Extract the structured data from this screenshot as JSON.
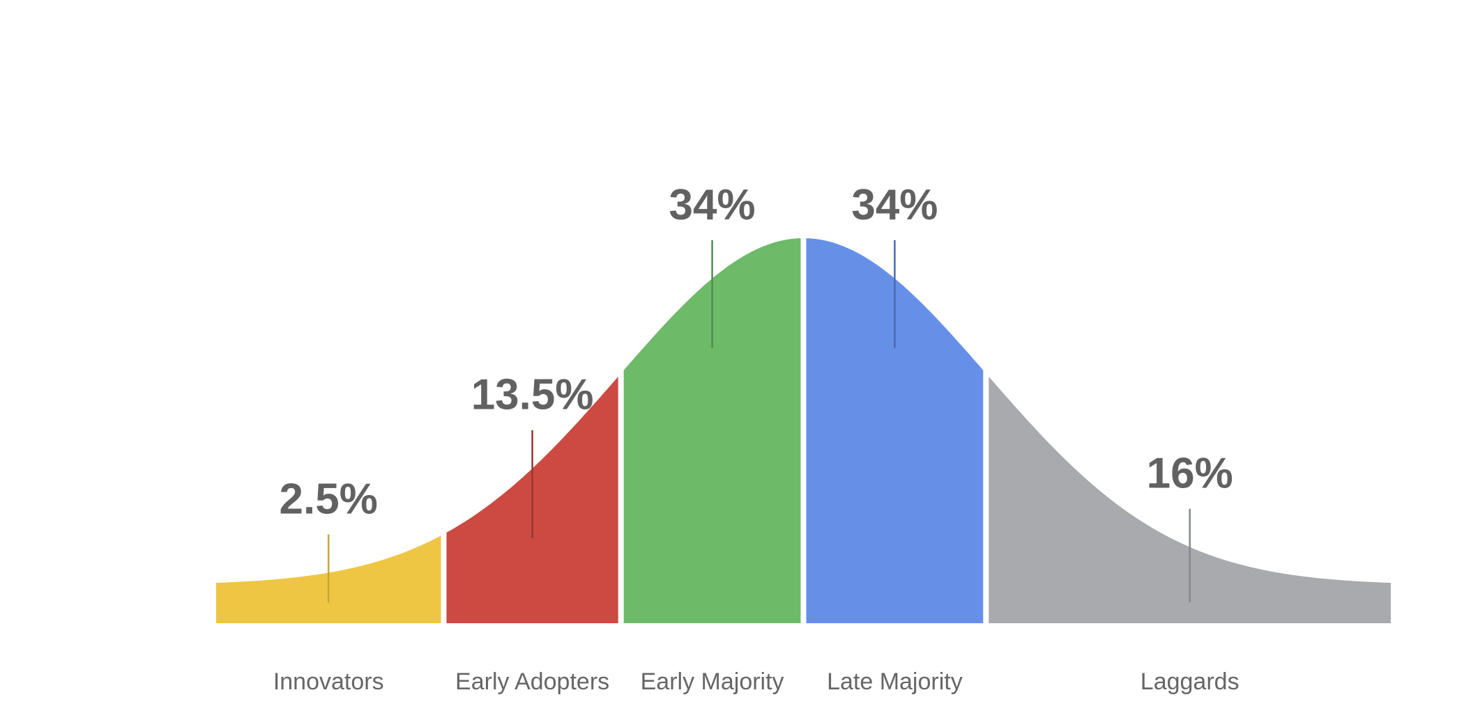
{
  "chart_data": {
    "type": "area",
    "title": "",
    "xlabel": "",
    "ylabel": "",
    "grid": false,
    "legend": "none",
    "segments": [
      {
        "name": "Innovators",
        "value_label": "2.5%",
        "value": 2.5,
        "color": "#EEC643",
        "leader_color": "#C9A43A"
      },
      {
        "name": "Early Adopters",
        "value_label": "13.5%",
        "value": 13.5,
        "color": "#CC4A42",
        "leader_color": "#8E3A35"
      },
      {
        "name": "Early Majority",
        "value_label": "34%",
        "value": 34,
        "color": "#6DBA68",
        "leader_color": "#4F8F4E"
      },
      {
        "name": "Late Majority",
        "value_label": "34%",
        "value": 34,
        "color": "#6690E8",
        "leader_color": "#4A6AB0"
      },
      {
        "name": "Laggards",
        "value_label": "16%",
        "value": 16,
        "color": "#A8AAAD",
        "leader_color": "#84878B"
      }
    ]
  }
}
